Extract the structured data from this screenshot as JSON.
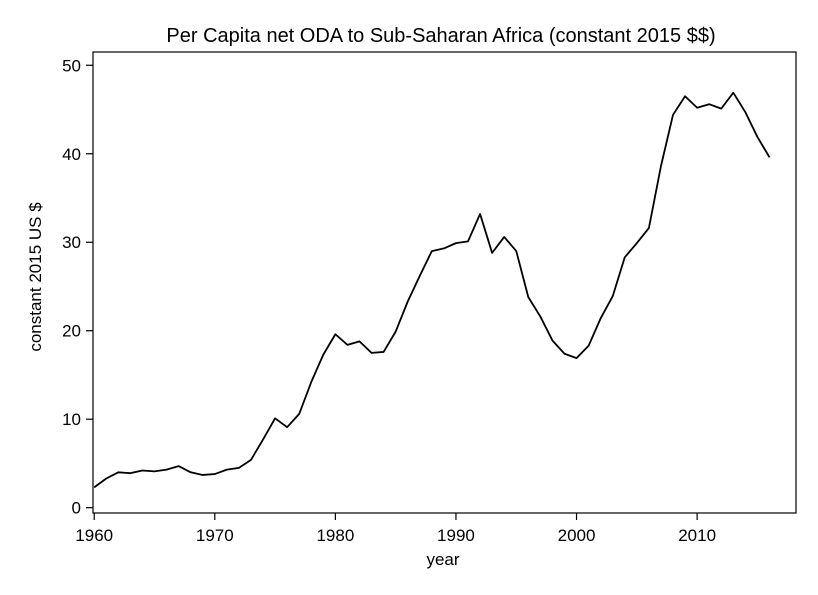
{
  "chart_data": {
    "type": "line",
    "title": "Per Capita net ODA to Sub-Saharan Africa (constant 2015 $$)",
    "xlabel": "year",
    "ylabel": "constant 2015 US $",
    "xlim": [
      1959.9,
      2018.2
    ],
    "ylim": [
      -0.6,
      51.5
    ],
    "xticks": [
      1960,
      1970,
      1980,
      1990,
      2000,
      2010
    ],
    "yticks": [
      0,
      10,
      20,
      30,
      40,
      50
    ],
    "xtick_labels": [
      "1960",
      "1970",
      "1980",
      "1990",
      "2000",
      "2010"
    ],
    "ytick_labels": [
      "0",
      "10",
      "20",
      "30",
      "40",
      "50"
    ],
    "grid": false,
    "series": [
      {
        "name": "Per capita net ODA",
        "color": "#000000",
        "x": [
          1960,
          1961,
          1962,
          1963,
          1964,
          1965,
          1966,
          1967,
          1968,
          1969,
          1970,
          1971,
          1972,
          1973,
          1974,
          1975,
          1976,
          1977,
          1978,
          1979,
          1980,
          1981,
          1982,
          1983,
          1984,
          1985,
          1986,
          1987,
          1988,
          1989,
          1990,
          1991,
          1992,
          1993,
          1994,
          1995,
          1996,
          1997,
          1998,
          1999,
          2000,
          2001,
          2002,
          2003,
          2004,
          2005,
          2006,
          2007,
          2008,
          2009,
          2010,
          2011,
          2012,
          2013,
          2014,
          2015,
          2016
        ],
        "values": [
          2.3,
          3.3,
          4.0,
          3.9,
          4.2,
          4.1,
          4.3,
          4.7,
          4.0,
          3.7,
          3.8,
          4.3,
          4.5,
          5.4,
          7.7,
          10.1,
          9.1,
          10.6,
          14.2,
          17.3,
          19.6,
          18.4,
          18.8,
          17.5,
          17.6,
          19.9,
          23.3,
          26.2,
          29.0,
          29.3,
          29.9,
          30.1,
          33.2,
          28.8,
          30.6,
          29.0,
          23.8,
          21.6,
          18.9,
          17.4,
          16.9,
          18.3,
          21.4,
          23.9,
          28.3,
          29.9,
          31.6,
          38.6,
          44.4,
          46.5,
          45.2,
          45.6,
          45.1,
          46.9,
          44.7,
          41.9,
          39.6
        ]
      }
    ]
  }
}
